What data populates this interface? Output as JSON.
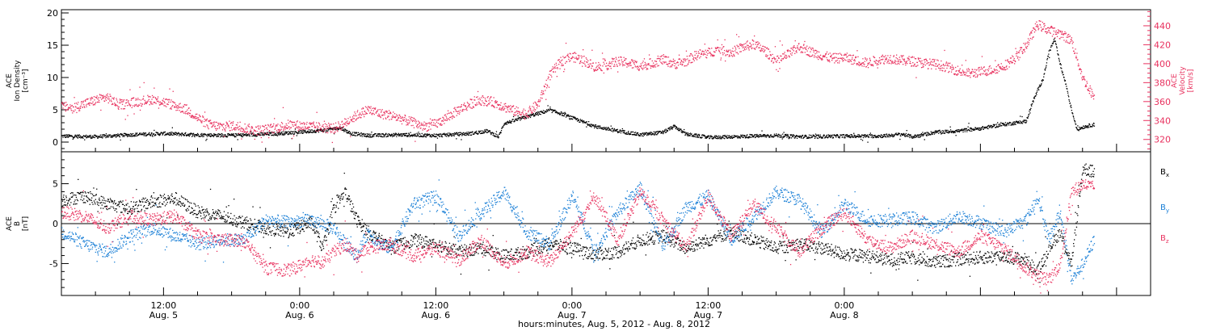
{
  "colors": {
    "black": "#000000",
    "blue": "#1a7fd6",
    "pink": "#e8325f",
    "axis": "#000000"
  },
  "x_axis": {
    "label": "hours:minutes, Aug.  5, 2012 - Aug.  8, 2012",
    "tick_times": [
      "12:00",
      "0:00",
      "12:00",
      "0:00",
      "12:00",
      "0:00"
    ],
    "tick_dates": [
      "Aug. 5",
      "Aug. 6",
      "Aug. 6",
      "Aug. 7",
      "Aug. 7",
      "Aug. 8"
    ]
  },
  "chart_data": [
    {
      "type": "scatter",
      "panel": "top",
      "left_axis": {
        "label_lines": [
          "ACE",
          "Ion Density",
          "[cm⁻³]"
        ],
        "ylim": [
          -1.5,
          20.5
        ],
        "ticks": [
          0,
          5,
          10,
          15,
          20
        ]
      },
      "right_axis": {
        "label_lines": [
          "ACE",
          "Velocity",
          "[km/s]"
        ],
        "ylim": [
          307,
          457
        ],
        "ticks": [
          320,
          340,
          360,
          380,
          400,
          420,
          440
        ],
        "color": "#e8325f"
      },
      "xlim_hours": [
        3,
        99
      ],
      "series": [
        {
          "axis": "left",
          "color": "#000000",
          "x": [
            3,
            6,
            9,
            12,
            15,
            18,
            21,
            24,
            26.5,
            27.5,
            28.5,
            30,
            33,
            36,
            39,
            40.5,
            41.5,
            42,
            42.5,
            44,
            46,
            47,
            48,
            50,
            52,
            54,
            56,
            57,
            58,
            60,
            62,
            66,
            68,
            72,
            75,
            76,
            77,
            78,
            80,
            82,
            84,
            86,
            88,
            88.5,
            89.5,
            90,
            90.5,
            91,
            91.5,
            92,
            92.5,
            93,
            93.5,
            94
          ],
          "y": [
            1.0,
            0.9,
            1.2,
            1.4,
            1.2,
            1.1,
            1.3,
            1.6,
            2.0,
            2.3,
            1.4,
            1.1,
            1.2,
            1.1,
            1.4,
            1.8,
            0.9,
            3.0,
            3.2,
            4.0,
            5.0,
            4.5,
            3.8,
            2.5,
            1.8,
            1.2,
            1.6,
            2.5,
            1.3,
            0.8,
            0.9,
            1.1,
            0.9,
            1.0,
            1.0,
            1.1,
            1.3,
            0.9,
            1.6,
            1.8,
            2.2,
            2.8,
            3.3,
            6.0,
            10.0,
            14.0,
            16.0,
            12.0,
            9.0,
            5.0,
            2.0,
            2.4,
            2.6,
            2.8
          ]
        },
        {
          "axis": "right",
          "color": "#e8325f",
          "x": [
            3,
            4,
            5,
            6,
            7,
            8,
            9,
            10,
            11,
            12,
            13,
            14,
            15,
            16,
            17,
            18,
            19,
            20,
            21,
            22,
            23,
            24,
            25,
            26,
            27,
            28,
            29,
            30,
            31,
            32,
            33,
            34,
            35,
            36,
            37,
            38,
            39,
            40,
            41,
            42,
            43,
            44,
            45,
            46,
            47,
            48,
            49,
            50,
            51,
            52,
            53,
            54,
            55,
            56,
            57,
            58,
            59,
            60,
            61,
            62,
            63,
            64,
            65,
            66,
            67,
            68,
            69,
            70,
            71,
            72,
            73,
            74,
            75,
            76,
            77,
            78,
            79,
            80,
            81,
            82,
            83,
            84,
            85,
            86,
            87,
            88,
            89,
            90,
            91,
            92,
            93,
            94
          ],
          "y": [
            355,
            354,
            358,
            362,
            365,
            357,
            359,
            361,
            363,
            360,
            356,
            352,
            343,
            336,
            334,
            335,
            333,
            330,
            331,
            333,
            336,
            335,
            334,
            333,
            332,
            338,
            346,
            352,
            348,
            346,
            342,
            338,
            334,
            337,
            344,
            352,
            358,
            362,
            360,
            355,
            350,
            348,
            358,
            388,
            403,
            408,
            404,
            397,
            399,
            403,
            401,
            398,
            401,
            405,
            400,
            403,
            410,
            412,
            416,
            412,
            418,
            421,
            414,
            403,
            410,
            418,
            413,
            409,
            406,
            407,
            404,
            401,
            405,
            406,
            404,
            403,
            401,
            400,
            397,
            393,
            390,
            392,
            394,
            398,
            406,
            420,
            442,
            436,
            432,
            425,
            385,
            365
          ]
        }
      ]
    },
    {
      "type": "scatter",
      "panel": "bottom",
      "left_axis": {
        "label_lines": [
          "ACE",
          "B",
          "[nT]"
        ],
        "ylim": [
          -9,
          9
        ],
        "ticks": [
          -5,
          0,
          5
        ]
      },
      "reference_line": 0,
      "legend_labels": [
        "Bx",
        "By",
        "Bz"
      ],
      "legend_placement": "right",
      "xlim_hours": [
        3,
        99
      ],
      "series": [
        {
          "name": "Bx",
          "color": "#000000",
          "x": [
            3,
            5,
            7,
            9,
            11,
            13,
            15,
            17,
            19,
            21,
            23,
            25,
            26,
            27,
            28,
            29,
            30,
            32,
            34,
            36,
            38,
            40,
            42,
            44,
            46,
            48,
            50,
            52,
            54,
            56,
            58,
            60,
            62,
            64,
            66,
            68,
            70,
            72,
            74,
            76,
            78,
            80,
            82,
            84,
            86,
            88,
            89,
            90,
            91,
            92,
            93,
            94
          ],
          "y": [
            3.0,
            3.5,
            2.5,
            2.0,
            2.8,
            3.2,
            1.5,
            1.0,
            0.2,
            -0.5,
            -1.0,
            0.2,
            -3.0,
            2.0,
            4.0,
            0.5,
            -1.0,
            -3.0,
            -2.0,
            -2.5,
            -3.5,
            -3.0,
            -4.0,
            -3.5,
            -2.5,
            -3.0,
            -3.8,
            -3.5,
            -2.0,
            -1.5,
            -3.0,
            -2.0,
            -1.0,
            -2.0,
            -3.0,
            -2.5,
            -3.0,
            -3.8,
            -4.0,
            -4.5,
            -4.2,
            -4.8,
            -4.4,
            -4.2,
            -4.0,
            -4.5,
            -6.0,
            -3.0,
            -1.0,
            -5.0,
            7.0,
            6.5
          ]
        },
        {
          "name": "By",
          "color": "#1a7fd6",
          "x": [
            3,
            5,
            7,
            9,
            11,
            13,
            15,
            17,
            19,
            21,
            23,
            25,
            27,
            28,
            29,
            30,
            31,
            32,
            34,
            36,
            38,
            40,
            42,
            44,
            46,
            48,
            50,
            52,
            54,
            56,
            58,
            60,
            62,
            64,
            66,
            68,
            70,
            72,
            74,
            76,
            78,
            80,
            82,
            84,
            86,
            88,
            89,
            90,
            91,
            92,
            93,
            94
          ],
          "y": [
            -1.0,
            -2.5,
            -3.5,
            -1.5,
            -0.5,
            -1.5,
            -2.5,
            -2.0,
            -2.0,
            0.5,
            0.2,
            0.5,
            -0.5,
            -2.5,
            -4.0,
            -1.0,
            -2.5,
            -3.0,
            2.5,
            3.5,
            -1.5,
            1.5,
            4.0,
            -1.0,
            -2.5,
            3.5,
            -3.5,
            1.5,
            4.5,
            -3.0,
            2.0,
            3.5,
            -2.0,
            1.0,
            4.0,
            3.0,
            -1.0,
            2.5,
            0.5,
            0.5,
            0.8,
            -0.5,
            1.0,
            0.2,
            -1.0,
            0.5,
            3.5,
            -2.0,
            1.5,
            -7.0,
            -5.0,
            -2.0
          ]
        },
        {
          "name": "Bz",
          "color": "#e8325f",
          "x": [
            3,
            5,
            7,
            9,
            11,
            13,
            15,
            17,
            19,
            21,
            23,
            24,
            25,
            26,
            27,
            28,
            29,
            30,
            32,
            34,
            36,
            38,
            40,
            42,
            44,
            46,
            48,
            50,
            52,
            54,
            56,
            58,
            60,
            62,
            64,
            66,
            68,
            70,
            72,
            74,
            76,
            78,
            80,
            82,
            84,
            86,
            88,
            89,
            90,
            91,
            92,
            93,
            94
          ],
          "y": [
            1.5,
            1.0,
            -0.5,
            1.0,
            0.5,
            1.0,
            -1.5,
            -2.0,
            -2.0,
            -5.5,
            -5.8,
            -5.2,
            -4.5,
            -4.8,
            -3.5,
            -2.5,
            -4.0,
            -3.0,
            -2.5,
            -4.0,
            -3.0,
            -4.5,
            -2.0,
            -5.0,
            -3.5,
            -4.8,
            -1.0,
            3.5,
            -2.0,
            4.0,
            0.5,
            -3.0,
            3.5,
            -1.5,
            2.5,
            -0.5,
            -3.5,
            -0.5,
            1.5,
            -2.0,
            -3.0,
            -1.5,
            -2.5,
            -3.5,
            -1.5,
            -3.0,
            -5.5,
            -6.5,
            -7.0,
            -5.0,
            4.0,
            5.0,
            4.5
          ]
        }
      ]
    }
  ]
}
